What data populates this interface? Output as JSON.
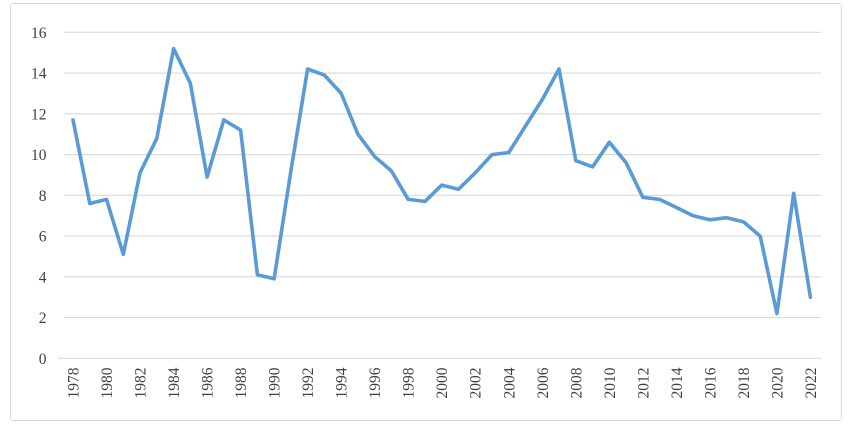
{
  "chart_data": {
    "type": "line",
    "title": "",
    "xlabel": "",
    "ylabel": "",
    "series_name": "",
    "x": [
      1978,
      1979,
      1980,
      1981,
      1982,
      1983,
      1984,
      1985,
      1986,
      1987,
      1988,
      1989,
      1990,
      1991,
      1992,
      1993,
      1994,
      1995,
      1996,
      1997,
      1998,
      1999,
      2000,
      2001,
      2002,
      2003,
      2004,
      2005,
      2006,
      2007,
      2008,
      2009,
      2010,
      2011,
      2012,
      2013,
      2014,
      2015,
      2016,
      2017,
      2018,
      2019,
      2020,
      2021,
      2022
    ],
    "values": [
      11.7,
      7.6,
      7.8,
      5.1,
      9.1,
      10.8,
      15.2,
      13.5,
      8.9,
      11.7,
      11.2,
      4.1,
      3.9,
      9.2,
      14.2,
      13.9,
      13.0,
      11.0,
      9.9,
      9.2,
      7.8,
      7.7,
      8.5,
      8.3,
      9.1,
      10.0,
      10.1,
      11.4,
      12.7,
      14.2,
      9.7,
      9.4,
      10.6,
      9.6,
      7.9,
      7.8,
      7.4,
      7.0,
      6.8,
      6.9,
      6.7,
      6.0,
      2.2,
      8.1,
      3.0
    ],
    "ylim": [
      0,
      16
    ],
    "yticks": [
      0,
      2,
      4,
      6,
      8,
      10,
      12,
      14,
      16
    ],
    "xtick_labels": [
      "1978",
      "1980",
      "1982",
      "1984",
      "1986",
      "1988",
      "1990",
      "1992",
      "1994",
      "1996",
      "1998",
      "2000",
      "2002",
      "2004",
      "2006",
      "2008",
      "2010",
      "2012",
      "2014",
      "2016",
      "2018",
      "2020",
      "2022"
    ],
    "xtick_rotation_degrees": -90,
    "grid": "horizontal",
    "legend_position": "none",
    "line_color": "#5b9bd5",
    "gridline_color": "#d9d9d9",
    "frame_border_color": "#d9d9d9",
    "tick_label_color": "#404040",
    "background_color": "#ffffff"
  }
}
